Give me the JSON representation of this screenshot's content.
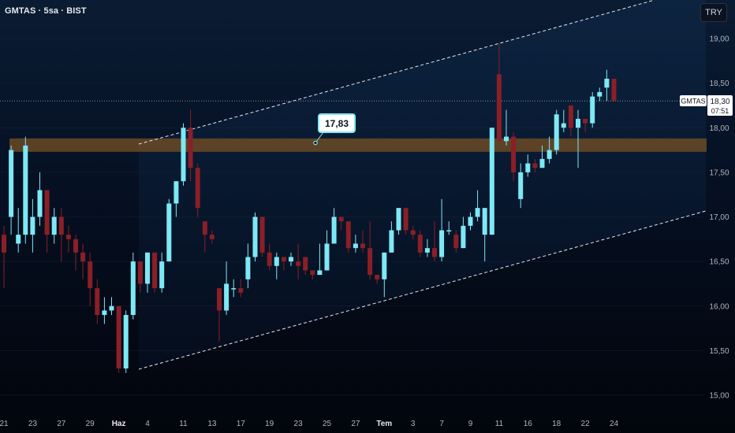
{
  "header": {
    "symbol_line": "GMTAS · 5sa · BIST"
  },
  "currency_button": "TRY",
  "price_badge": {
    "symbol": "GMTAS",
    "price": "18,30",
    "countdown": "07:51"
  },
  "colors": {
    "up": "#7ee8f5",
    "down": "#8a1f27",
    "channel": "#e6e8ee",
    "zone": "#6b4a24",
    "axis_text": "#b2b5be"
  },
  "chart_data": {
    "type": "candlestick",
    "title": "GMTAS · 5sa · BIST",
    "ylim": [
      14.9,
      19.4
    ],
    "y_ticks": [
      "15,00",
      "15,50",
      "16,00",
      "16,50",
      "17,00",
      "17,50",
      "18,00",
      "18,50",
      "19,00"
    ],
    "y_tick_values": [
      15.0,
      15.5,
      16.0,
      16.5,
      17.0,
      17.5,
      18.0,
      18.5,
      19.0
    ],
    "x_ticks": [
      {
        "label": "21",
        "bold": false,
        "index": 0
      },
      {
        "label": "23",
        "bold": false,
        "index": 4
      },
      {
        "label": "27",
        "bold": false,
        "index": 8
      },
      {
        "label": "29",
        "bold": false,
        "index": 12
      },
      {
        "label": "Haz",
        "bold": true,
        "index": 16
      },
      {
        "label": "4",
        "bold": false,
        "index": 20
      },
      {
        "label": "11",
        "bold": false,
        "index": 25
      },
      {
        "label": "13",
        "bold": false,
        "index": 29
      },
      {
        "label": "17",
        "bold": false,
        "index": 33
      },
      {
        "label": "19",
        "bold": false,
        "index": 37
      },
      {
        "label": "23",
        "bold": false,
        "index": 41
      },
      {
        "label": "25",
        "bold": false,
        "index": 45
      },
      {
        "label": "27",
        "bold": false,
        "index": 49
      },
      {
        "label": "Tem",
        "bold": true,
        "index": 53
      },
      {
        "label": "3",
        "bold": false,
        "index": 57
      },
      {
        "label": "7",
        "bold": false,
        "index": 61
      },
      {
        "label": "9",
        "bold": false,
        "index": 65
      },
      {
        "label": "11",
        "bold": false,
        "index": 69
      },
      {
        "label": "16",
        "bold": false,
        "index": 73
      },
      {
        "label": "18",
        "bold": false,
        "index": 77
      },
      {
        "label": "22",
        "bold": false,
        "index": 81
      },
      {
        "label": "24",
        "bold": false,
        "index": 85
      }
    ],
    "candles": [
      [
        16.8,
        16.6,
        16.9,
        16.2
      ],
      [
        17.0,
        17.75,
        17.8,
        16.8
      ],
      [
        16.7,
        16.8,
        17.1,
        16.6
      ],
      [
        16.8,
        17.8,
        17.9,
        16.7
      ],
      [
        16.8,
        17.0,
        17.2,
        16.6
      ],
      [
        17.0,
        17.3,
        17.5,
        16.9
      ],
      [
        17.3,
        16.8,
        17.3,
        16.6
      ],
      [
        16.8,
        17.0,
        17.1,
        16.7
      ],
      [
        17.0,
        16.8,
        17.1,
        16.5
      ],
      [
        16.8,
        16.75,
        16.9,
        16.6
      ],
      [
        16.75,
        16.6,
        16.8,
        16.4
      ],
      [
        16.6,
        16.5,
        16.7,
        16.3
      ],
      [
        16.5,
        16.2,
        16.6,
        16.0
      ],
      [
        16.2,
        15.9,
        16.3,
        15.8
      ],
      [
        15.9,
        15.95,
        16.1,
        15.8
      ],
      [
        15.95,
        16.0,
        16.1,
        15.9
      ],
      [
        16.0,
        15.3,
        16.0,
        15.25
      ],
      [
        15.3,
        15.9,
        15.95,
        15.25
      ],
      [
        15.9,
        16.5,
        16.6,
        15.85
      ],
      [
        16.5,
        16.25,
        16.5,
        16.15
      ],
      [
        16.25,
        16.6,
        16.6,
        16.15
      ],
      [
        16.6,
        16.2,
        16.6,
        16.15
      ],
      [
        16.2,
        16.5,
        16.6,
        16.15
      ],
      [
        16.5,
        17.15,
        17.2,
        16.5
      ],
      [
        17.15,
        17.4,
        17.4,
        17.0
      ],
      [
        17.4,
        18.0,
        18.05,
        17.35
      ],
      [
        18.0,
        17.55,
        18.2,
        17.4
      ],
      [
        17.55,
        17.1,
        17.6,
        17.0
      ],
      [
        16.95,
        16.8,
        16.95,
        16.6
      ],
      [
        16.8,
        16.75,
        16.85,
        16.7
      ],
      [
        16.2,
        15.95,
        16.2,
        15.6
      ],
      [
        15.95,
        16.25,
        16.5,
        15.9
      ],
      [
        16.2,
        16.2,
        16.3,
        16.1
      ],
      [
        16.2,
        16.15,
        16.3,
        16.1
      ],
      [
        16.3,
        16.55,
        16.7,
        16.2
      ],
      [
        16.55,
        17.0,
        17.05,
        16.5
      ],
      [
        17.0,
        16.6,
        17.0,
        16.55
      ],
      [
        16.6,
        16.45,
        16.7,
        16.4
      ],
      [
        16.45,
        16.55,
        16.6,
        16.3
      ],
      [
        16.55,
        16.5,
        16.55,
        16.4
      ],
      [
        16.5,
        16.55,
        16.6,
        16.45
      ],
      [
        16.5,
        16.45,
        16.7,
        16.3
      ],
      [
        16.55,
        16.4,
        16.5,
        16.35
      ],
      [
        16.4,
        16.35,
        16.4,
        16.3
      ],
      [
        16.35,
        16.4,
        16.7,
        16.35
      ],
      [
        16.4,
        16.7,
        16.85,
        16.4
      ],
      [
        16.7,
        17.0,
        17.1,
        16.7
      ],
      [
        17.0,
        16.95,
        17.0,
        16.85
      ],
      [
        16.95,
        16.65,
        16.95,
        16.6
      ],
      [
        16.65,
        16.7,
        16.8,
        16.6
      ],
      [
        16.7,
        16.65,
        16.85,
        16.6
      ],
      [
        16.65,
        16.35,
        16.95,
        16.3
      ],
      [
        16.35,
        16.3,
        16.35,
        16.25
      ],
      [
        16.3,
        16.6,
        16.6,
        16.1
      ],
      [
        16.6,
        16.85,
        16.95,
        16.6
      ],
      [
        16.85,
        17.1,
        17.1,
        16.8
      ],
      [
        17.1,
        16.85,
        17.1,
        16.8
      ],
      [
        16.85,
        16.8,
        16.9,
        16.75
      ],
      [
        16.8,
        16.6,
        16.85,
        16.55
      ],
      [
        16.6,
        16.65,
        16.75,
        16.55
      ],
      [
        16.65,
        16.55,
        16.95,
        16.5
      ],
      [
        16.55,
        16.85,
        17.2,
        16.5
      ],
      [
        16.85,
        16.85,
        16.95,
        16.8
      ],
      [
        16.8,
        16.65,
        16.85,
        16.6
      ],
      [
        16.65,
        16.9,
        17.0,
        16.65
      ],
      [
        16.9,
        17.0,
        17.05,
        16.85
      ],
      [
        17.0,
        17.1,
        17.3,
        16.95
      ],
      [
        16.8,
        17.1,
        17.1,
        16.5
      ],
      [
        16.8,
        18.0,
        18.0,
        16.8
      ],
      [
        18.6,
        17.85,
        18.95,
        17.85
      ],
      [
        17.85,
        17.9,
        18.2,
        17.8
      ],
      [
        17.9,
        17.5,
        17.95,
        17.4
      ],
      [
        17.2,
        17.5,
        17.6,
        17.1
      ],
      [
        17.5,
        17.6,
        17.7,
        17.45
      ],
      [
        17.6,
        17.55,
        17.65,
        17.5
      ],
      [
        17.55,
        17.65,
        17.8,
        17.55
      ],
      [
        17.65,
        17.75,
        17.9,
        17.6
      ],
      [
        17.75,
        18.15,
        18.2,
        17.7
      ],
      [
        18.0,
        18.05,
        18.2,
        17.95
      ],
      [
        18.25,
        18.0,
        18.25,
        17.9
      ],
      [
        18.0,
        18.1,
        18.2,
        17.55
      ],
      [
        18.1,
        18.05,
        18.1,
        17.95
      ],
      [
        18.05,
        18.35,
        18.4,
        18.0
      ],
      [
        18.35,
        18.4,
        18.45,
        18.3
      ],
      [
        18.45,
        18.55,
        18.65,
        18.3
      ],
      [
        18.55,
        18.3,
        18.55,
        18.3
      ]
    ],
    "resistance_zone": {
      "from": 17.73,
      "to": 17.88
    },
    "annotation": {
      "label": "17,83",
      "value": 17.83
    },
    "current_price": 18.3
  }
}
